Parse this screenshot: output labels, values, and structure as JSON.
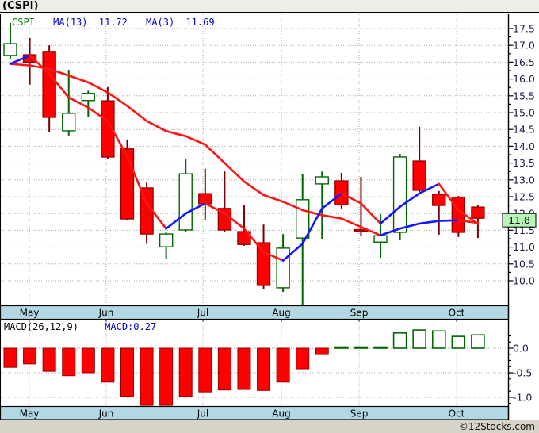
{
  "title": "(CSPI)",
  "legend": {
    "symbol": "CSPI",
    "ma13_label": "MA(13)",
    "ma13_value": "11.72",
    "ma3_label": "MA(3)",
    "ma3_value": "11.69"
  },
  "macd_header": {
    "label": "MACD(26,12,9)",
    "value_label": "MACD:0.27"
  },
  "watermark": "©12Stocks.com",
  "last_price_marker": "11.8",
  "colors": {
    "band_blue": "#b2d8e4",
    "up_stroke": "#006600",
    "up_fill": "#ffffff",
    "down_fill": "#ff0000",
    "down_stroke": "#990000",
    "down_wick": "#7c0000",
    "ma_rising": "#1414ff",
    "ma_falling": "#ff1414",
    "grid": "#aaaaaa",
    "axis_text": "#1a1a4d",
    "last_price_bg": "#b8f5b8"
  },
  "chart_data": [
    {
      "type": "candlestick",
      "title": "CSPI weekly price",
      "panel": "price",
      "months": [
        "May",
        "Jun",
        "Jul",
        "Aug",
        "Sep",
        "Oct"
      ],
      "y_axis": {
        "min": 10.0,
        "max": 17.5,
        "tick_step": 0.5,
        "position": "right",
        "tick_labels": [
          "17.5",
          "17.0",
          "16.5",
          "16.0",
          "15.5",
          "15.0",
          "14.5",
          "14.0",
          "13.5",
          "13.0",
          "12.5",
          "12.0",
          "11.5",
          "11.0",
          "10.5",
          "10.0"
        ]
      },
      "last_price": 11.8,
      "candles_ohlc": [
        [
          16.7,
          17.67,
          16.6,
          17.05
        ],
        [
          16.72,
          17.22,
          15.83,
          16.5
        ],
        [
          16.82,
          17.0,
          14.41,
          14.86
        ],
        [
          14.46,
          16.27,
          14.32,
          14.98
        ],
        [
          15.36,
          15.65,
          14.86,
          15.57
        ],
        [
          15.35,
          15.76,
          13.63,
          13.68
        ],
        [
          13.92,
          14.2,
          11.79,
          11.84
        ],
        [
          12.76,
          12.92,
          11.1,
          11.39
        ],
        [
          11.01,
          11.45,
          10.64,
          11.39
        ],
        [
          11.51,
          13.61,
          11.46,
          13.18
        ],
        [
          12.59,
          13.33,
          11.82,
          12.29
        ],
        [
          12.15,
          13.25,
          11.46,
          11.51
        ],
        [
          11.46,
          12.24,
          11.04,
          11.08
        ],
        [
          11.13,
          11.67,
          9.74,
          9.86
        ],
        [
          9.79,
          11.39,
          9.67,
          10.97
        ],
        [
          11.27,
          13.16,
          9.29,
          12.41
        ],
        [
          12.88,
          13.25,
          11.23,
          13.09
        ],
        [
          12.97,
          13.21,
          12.15,
          12.26
        ],
        [
          11.52,
          13.09,
          11.32,
          11.5
        ],
        [
          11.15,
          11.98,
          10.68,
          11.34
        ],
        [
          11.44,
          13.77,
          11.2,
          13.68
        ],
        [
          13.56,
          14.58,
          12.64,
          12.69
        ],
        [
          12.57,
          12.67,
          11.37,
          12.24
        ],
        [
          12.48,
          12.52,
          11.3,
          11.44
        ],
        [
          12.19,
          12.24,
          11.27,
          11.86
        ]
      ],
      "series": [
        {
          "name": "MA(13)",
          "current": 11.72,
          "values": [
            16.45,
            16.4,
            16.3,
            16.1,
            15.9,
            15.6,
            15.2,
            14.75,
            14.45,
            14.3,
            14.05,
            13.5,
            12.95,
            12.55,
            12.35,
            12.1,
            11.95,
            11.85,
            11.6,
            11.35,
            11.55,
            11.7,
            11.78,
            11.8,
            11.72
          ]
        },
        {
          "name": "MA(3)",
          "current": 11.69,
          "values": [
            16.45,
            16.7,
            16.15,
            15.45,
            15.15,
            14.75,
            13.7,
            12.3,
            11.55,
            12.0,
            12.3,
            12.0,
            11.55,
            10.85,
            10.6,
            11.1,
            12.15,
            12.6,
            12.3,
            11.7,
            12.2,
            12.6,
            12.88,
            12.1,
            11.69
          ]
        }
      ]
    },
    {
      "type": "bar",
      "title": "MACD(26,12,9) histogram",
      "panel": "macd",
      "current": 0.27,
      "months": [
        "May",
        "Jun",
        "Jul",
        "Aug",
        "Sep",
        "Oct"
      ],
      "y_axis": {
        "min": -1.25,
        "max": 0.55,
        "tick_labels": [
          "0.0",
          "-0.5",
          "-1.0"
        ],
        "tick_values": [
          0,
          -0.5,
          -1.0
        ],
        "position": "right"
      },
      "values": [
        -0.39,
        -0.32,
        -0.47,
        -0.56,
        -0.5,
        -0.69,
        -0.98,
        -1.19,
        -1.25,
        -0.98,
        -0.89,
        -0.85,
        -0.84,
        -0.86,
        -0.69,
        -0.42,
        -0.13,
        0.02,
        0.02,
        0.02,
        0.31,
        0.37,
        0.35,
        0.24,
        0.27
      ]
    }
  ]
}
